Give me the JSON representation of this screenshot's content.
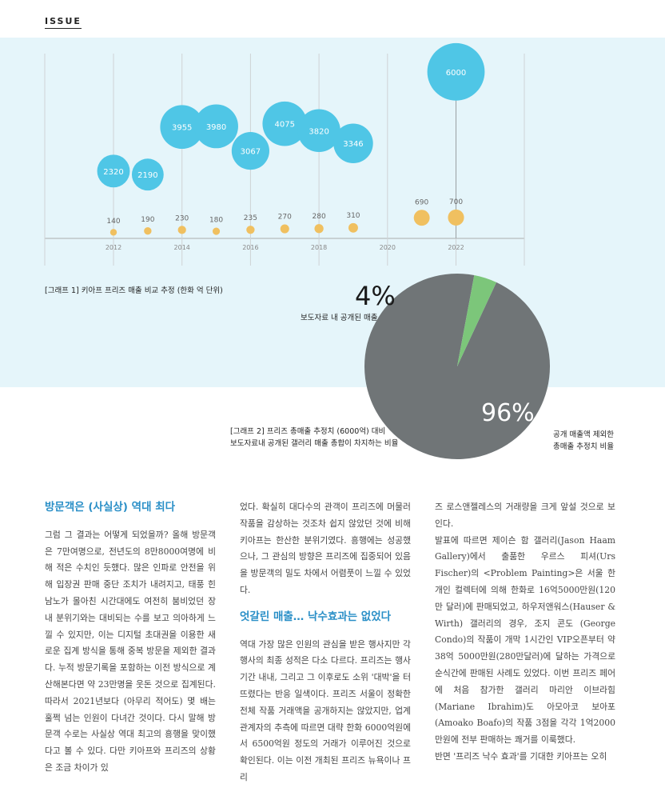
{
  "header": {
    "issue_label": "ISSUE"
  },
  "colors": {
    "panel_bg": "#e5f5fa",
    "bubble": "#4fc6e6",
    "small_bubble": "#f0c060",
    "pie_main": "#707577",
    "pie_slice": "#7cc67a",
    "heading": "#2a8fc7"
  },
  "chart_data": [
    {
      "type": "scatter",
      "caption": "[그래프 1] 키아프 프리즈 매출 비교 추정 (한화 억 단위)",
      "x_ticks": [
        "2012",
        "2014",
        "2016",
        "2018",
        "2020",
        "2022"
      ],
      "series": [
        {
          "points": [
            {
              "x": 2012,
              "y": 2320
            },
            {
              "x": 2013,
              "y": 2190
            },
            {
              "x": 2014,
              "y": 3955
            },
            {
              "x": 2015,
              "y": 3980
            },
            {
              "x": 2016,
              "y": 3067
            },
            {
              "x": 2017,
              "y": 4075
            },
            {
              "x": 2018,
              "y": 3820
            },
            {
              "x": 2019,
              "y": 3346
            },
            {
              "x": 2022,
              "y": 6000
            }
          ]
        },
        {
          "points": [
            {
              "x": 2012,
              "y": 140
            },
            {
              "x": 2013,
              "y": 190
            },
            {
              "x": 2014,
              "y": 230
            },
            {
              "x": 2015,
              "y": 180
            },
            {
              "x": 2016,
              "y": 235
            },
            {
              "x": 2017,
              "y": 270
            },
            {
              "x": 2018,
              "y": 280
            },
            {
              "x": 2019,
              "y": 310
            },
            {
              "x": 2021,
              "y": 690
            },
            {
              "x": 2022,
              "y": 700
            }
          ]
        }
      ]
    },
    {
      "type": "pie",
      "caption_line1": "[그래프 2] 프리즈 총매출 추정치 (6000억) 대비",
      "caption_line2": "보도자료내 공개된 갤러리 매출 총합이 차지하는 비율",
      "slices": [
        {
          "label": "보도자료 내 공개된 매출",
          "value": 4,
          "display": "4%"
        },
        {
          "label_line1": "공개 매출액 제외한",
          "label_line2": "총매출 추정치 비율",
          "value": 96,
          "display": "96%"
        }
      ]
    }
  ],
  "article": {
    "col1_heading": "방문객은 (사실상) 역대 최다",
    "col1_body": "그럼 그 결과는 어떻게 되었을까? 올해 방문객은 7만여명으로, 전년도의 8만8000여명에 비해 적은 수치인 듯했다. 많은 인파로 안전을 위해 입장권 판매 중단 조치가 내려지고, 태풍 힌남노가 몰아친 시간대에도 여전히 붐비었던 장내 분위기와는 대비되는 수를 보고 의아하게 느낄 수 있지만, 이는 디지털 초대권을 이용한 새로운 집계 방식을 통해 중복 방문을 제외한 결과다. 누적 방문기록을 포함하는 이전 방식으로 계산해본다면 약 23만명을 웃돈 것으로 집계된다. 따라서 2021년보다 (아무리 적어도) 몇 배는 훌쩍 넘는 인원이 다녀간 것이다. 다시 말해 방문객 수로는 사실상 역대 최고의 흥행을 맞이했다고 볼 수 있다. 다만 키아프와 프리즈의 상황은 조금 차이가 있",
    "col2_body1": "었다. 확실히 대다수의 관객이 프리즈에 머물러 작품을 감상하는 것조차 쉽지 않았던 것에 비해 키아프는 한산한 분위기였다. 흥행에는 성공했으나, 그 관심의 방향은 프리즈에 집중되어 있음을 방문객의 밀도 차에서 어렴풋이 느낄 수 있었다.",
    "col2_heading": "엇갈린 매출… 낙수효과는 없었다",
    "col2_body2": "역대 가장 많은 인원의 관심을 받은 행사지만 각 행사의 최종 성적은 다소 다르다. 프리즈는 행사 기간 내내, 그리고 그 이후로도 소위 '대박'을 터뜨렸다는 반응 일색이다. 프리즈 서울이 정확한 전체 작품 거래액을 공개하지는 않았지만, 업계 관계자의 추측에 따르면 대략 한화 6000억원에서 6500억원 정도의 거래가 이루어진 것으로 확인된다. 이는 이전 개최된 프리즈 뉴욕이나 프리",
    "col3_body1": "즈 로스앤젤레스의 거래량을 크게 앞설 것으로 보인다.",
    "col3_body2": "발표에 따르면 제이슨 함 갤러리(Jason Haam Gallery)에서 출품한 우르스 피셔(Urs Fischer)의 <Problem Painting>은 서울 한 개인 컬렉터에 의해 한화로 16억5000만원(120만 달러)에 판매되었고, 하우저앤워스(Hauser & Wirth) 갤러리의 경우, 조지 콘도 (George Condo)의 작품이 개막 1시간인 VIP오픈부터 약 38억 5000만원(280만달러)에 달하는 가격으로 순식간에 판매된 사례도 있었다. 이번 프리즈 페어에 처음 참가한 갤러리 마리안 이브라힘(Mariane Ibrahim)도 아모아코 보아포(Amoako Boafo)의 작품 3점을 각각 1억2000만원에 전부 판매하는 쾌거를 이룩했다.",
    "col3_body3": "반면 '프리즈 낙수 효과'를 기대한 키아프는 오히"
  }
}
